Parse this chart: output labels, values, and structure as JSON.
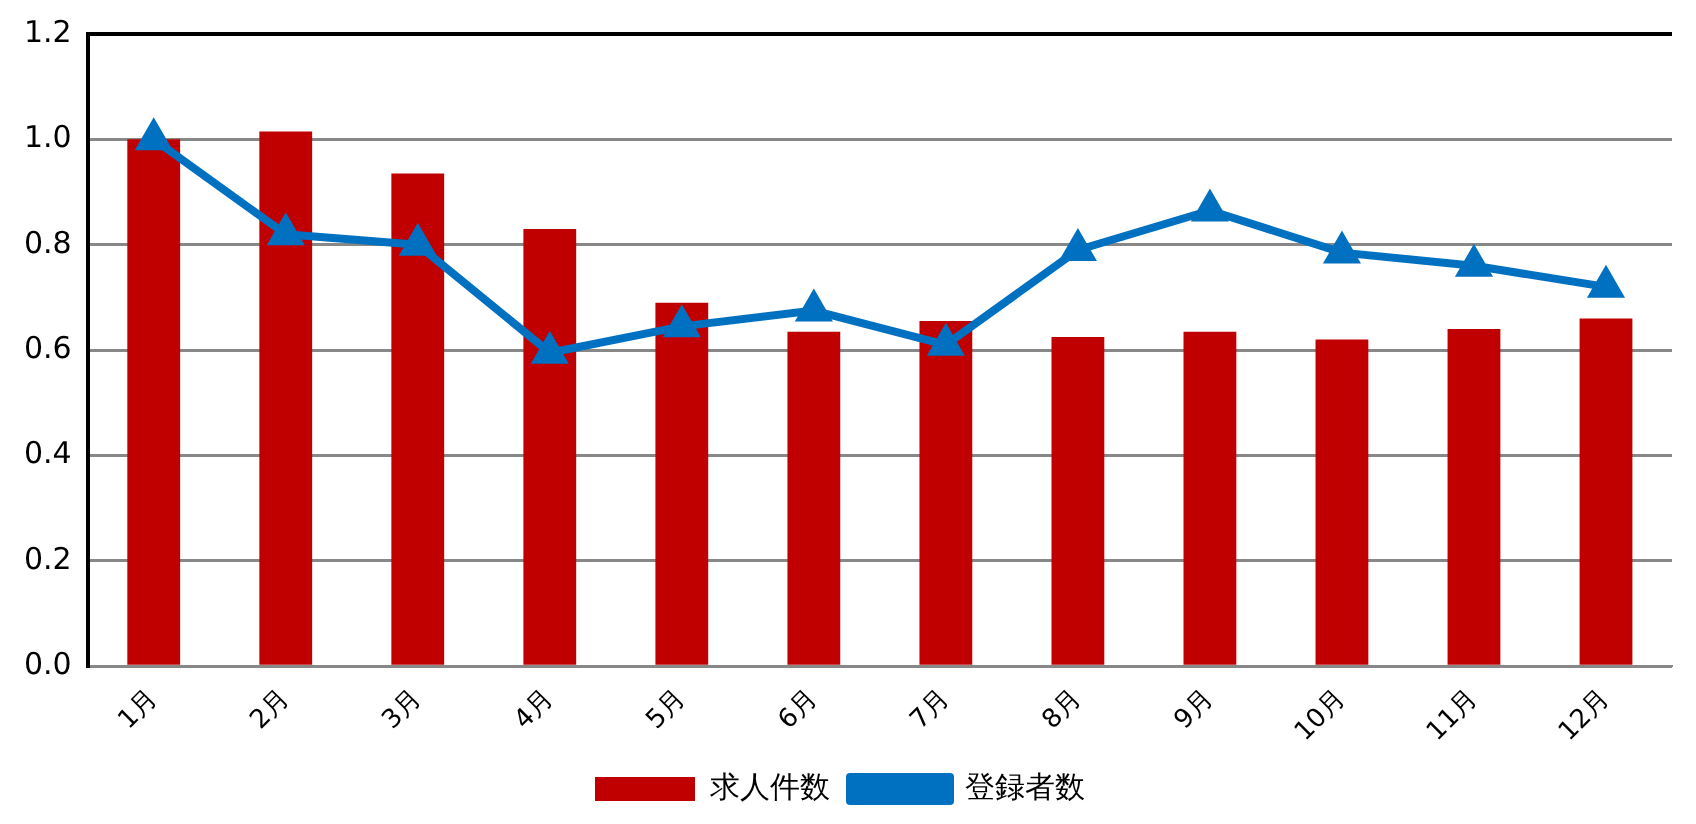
{
  "chart_data": {
    "type": "bar",
    "categories": [
      "1月",
      "2月",
      "3月",
      "4月",
      "5月",
      "6月",
      "7月",
      "8月",
      "9月",
      "10月",
      "11月",
      "12月"
    ],
    "series": [
      {
        "name": "求人件数",
        "color": "#c00000",
        "values": [
          1.0,
          1.015,
          0.935,
          0.83,
          0.69,
          0.635,
          0.655,
          0.625,
          0.635,
          0.62,
          0.64,
          0.66
        ]
      },
      {
        "name": "登録者数",
        "type": "line",
        "color": "#0070c0",
        "values": [
          1.0,
          0.82,
          0.8,
          0.595,
          0.645,
          0.675,
          0.61,
          0.79,
          0.865,
          0.785,
          0.76,
          0.72
        ]
      }
    ],
    "ylim": [
      0,
      1.2
    ],
    "yticks": [
      {
        "value": 0,
        "label": "0.0"
      },
      {
        "value": 0.2,
        "label": "0.2"
      },
      {
        "value": 0.4,
        "label": "0.4"
      },
      {
        "value": 0.6,
        "label": "0.6"
      },
      {
        "value": 0.8,
        "label": "0.8"
      },
      {
        "value": 1.0,
        "label": "1.0"
      },
      {
        "value": 1.2,
        "label": "1.2"
      }
    ],
    "grid": "y",
    "legend": "bottom",
    "marker": "triangle",
    "line_style": "solid"
  }
}
